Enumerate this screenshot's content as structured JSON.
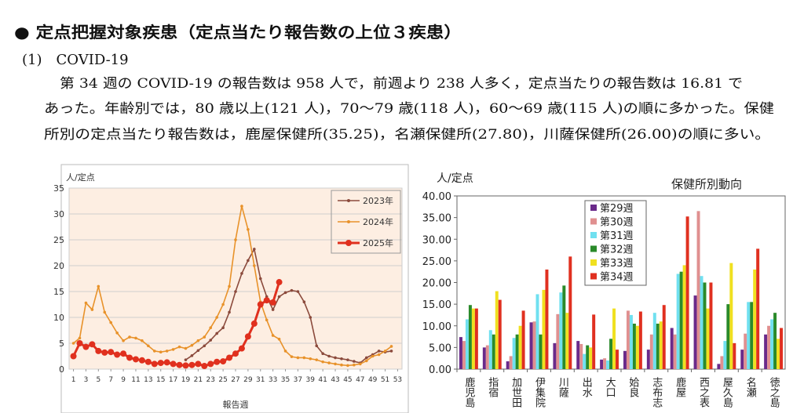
{
  "header": {
    "title": "● 定点把握対象疾患（定点当たり報告数の上位３疾患）",
    "subtitle": "(1)　COVID-19"
  },
  "paragraph": [
    "第 34 週の COVID-19 の報告数は 958 人で，前週より 238 人多く，定点当たりの報告数は 16.81 で",
    "あった。年齢別では，80 歳以上(121 人)，70〜79 歳(118 人)，60〜69 歳(115 人)の順に多かった。保健",
    "所別の定点当たり報告数は，鹿屋保健所(35.25)，名瀬保健所(27.80)，川薩保健所(26.00)の順に多い。"
  ],
  "chart_data": [
    {
      "type": "line",
      "ylabel": "人/定点",
      "xlabel": "報告週",
      "grid": true,
      "legend": "top-right",
      "x": [
        1,
        2,
        3,
        4,
        5,
        6,
        7,
        8,
        9,
        10,
        11,
        12,
        13,
        14,
        15,
        16,
        17,
        18,
        19,
        20,
        21,
        22,
        23,
        24,
        25,
        26,
        27,
        28,
        29,
        30,
        31,
        32,
        33,
        34,
        35,
        36,
        37,
        38,
        39,
        40,
        41,
        42,
        43,
        44,
        45,
        46,
        47,
        48,
        49,
        50,
        51,
        52,
        53
      ],
      "xlim": [
        0.3,
        53.7
      ],
      "xticks": [
        1,
        3,
        5,
        7,
        9,
        11,
        13,
        15,
        17,
        19,
        21,
        23,
        25,
        27,
        29,
        31,
        33,
        35,
        37,
        39,
        41,
        43,
        45,
        47,
        49,
        51,
        53
      ],
      "ylim": [
        0,
        35
      ],
      "yticks": [
        0,
        5,
        10,
        15,
        20,
        25,
        30,
        35
      ],
      "series": [
        {
          "name": "2023年",
          "color": "#8b4a3c",
          "values": [
            null,
            null,
            null,
            null,
            null,
            null,
            null,
            null,
            null,
            null,
            null,
            null,
            null,
            null,
            null,
            null,
            null,
            null,
            1.8,
            2.6,
            3.6,
            4.5,
            5.6,
            6.9,
            8.0,
            11.0,
            15.0,
            18.5,
            21.0,
            23.2,
            17.5,
            14.0,
            11.5,
            14.0,
            14.8,
            15.2,
            15.0,
            13.0,
            10.0,
            4.5,
            3.0,
            2.5,
            2.2,
            2.0,
            1.8,
            1.5,
            1.2,
            2.2,
            2.8,
            3.5,
            3.3,
            3.5,
            null
          ]
        },
        {
          "name": "2024年",
          "color": "#e8922a",
          "values": [
            5.0,
            6.0,
            12.8,
            11.5,
            16.0,
            11.0,
            9.0,
            7.0,
            5.5,
            6.2,
            6.0,
            5.5,
            4.5,
            3.5,
            3.3,
            3.5,
            3.8,
            4.3,
            4.0,
            4.6,
            5.5,
            6.2,
            8.0,
            10.0,
            12.5,
            16.0,
            25.0,
            31.5,
            27.0,
            20.0,
            13.0,
            9.5,
            6.5,
            5.8,
            3.5,
            2.4,
            2.2,
            2.2,
            2.0,
            1.8,
            1.4,
            1.2,
            1.0,
            0.8,
            0.7,
            0.8,
            1.0,
            1.6,
            2.5,
            2.8,
            3.5,
            4.4,
            null
          ]
        },
        {
          "name": "2025年",
          "color": "#e0301e",
          "values": [
            2.5,
            5.0,
            4.3,
            4.8,
            3.5,
            3.2,
            3.3,
            2.8,
            3.0,
            2.2,
            1.9,
            1.7,
            1.4,
            1.0,
            1.2,
            1.3,
            1.0,
            0.8,
            0.7,
            0.8,
            1.0,
            0.6,
            1.0,
            1.4,
            1.5,
            2.2,
            3.0,
            4.0,
            6.3,
            8.8,
            12.5,
            13.3,
            12.9,
            16.81,
            null,
            null,
            null,
            null,
            null,
            null,
            null,
            null,
            null,
            null,
            null,
            null,
            null,
            null,
            null,
            null,
            null,
            null,
            null
          ]
        }
      ]
    },
    {
      "type": "bar",
      "title": "保健所別動向",
      "ylabel": "人/定点",
      "grid": false,
      "legend": "top-left",
      "categories": [
        "鹿児島",
        "指宿",
        "加世田",
        "伊集院",
        "川薩",
        "出水",
        "大口",
        "姶良",
        "志布志",
        "鹿屋",
        "西之表",
        "屋久島",
        "名瀬",
        "徳之島"
      ],
      "ylim": [
        0,
        40
      ],
      "yticks": [
        {
          "value": 0,
          "label": "0.00"
        },
        {
          "value": 5,
          "label": "5.00"
        },
        {
          "value": 10,
          "label": "10.00"
        },
        {
          "value": 15,
          "label": "15.00"
        },
        {
          "value": 20,
          "label": "20.00"
        },
        {
          "value": 25,
          "label": "25.00"
        },
        {
          "value": 30,
          "label": "30.00"
        },
        {
          "value": 35,
          "label": "35.00"
        },
        {
          "value": 40,
          "label": "40.00"
        }
      ],
      "series": [
        {
          "name": "第29週",
          "color": "#6a2a8a",
          "values": [
            7.4,
            5.0,
            1.8,
            10.8,
            6.0,
            6.5,
            2.2,
            4.2,
            4.5,
            9.5,
            17.0,
            1.2,
            4.5,
            8.0
          ]
        },
        {
          "name": "第30週",
          "color": "#e09090",
          "values": [
            6.5,
            5.5,
            3.0,
            11.0,
            12.7,
            5.8,
            2.5,
            13.5,
            8.0,
            8.0,
            36.5,
            3.0,
            8.2,
            10.0
          ]
        },
        {
          "name": "第31週",
          "color": "#70e0f0",
          "values": [
            11.5,
            9.0,
            7.2,
            17.3,
            17.7,
            3.5,
            2.0,
            12.5,
            13.0,
            22.0,
            21.5,
            6.5,
            15.5,
            11.5
          ]
        },
        {
          "name": "第32週",
          "color": "#2a8a2a",
          "values": [
            14.8,
            8.0,
            8.0,
            8.0,
            19.3,
            5.5,
            7.0,
            10.5,
            10.5,
            22.5,
            20.0,
            15.0,
            15.5,
            13.0
          ]
        },
        {
          "name": "第33週",
          "color": "#f0e020",
          "values": [
            14.0,
            18.0,
            10.0,
            18.3,
            13.0,
            5.0,
            14.0,
            10.0,
            11.0,
            24.0,
            14.0,
            24.5,
            23.0,
            7.0
          ]
        },
        {
          "name": "第34週",
          "color": "#e03020",
          "values": [
            14.0,
            16.0,
            13.5,
            23.0,
            26.0,
            12.6,
            4.5,
            13.3,
            14.8,
            35.25,
            20.0,
            6.0,
            27.8,
            9.5
          ]
        }
      ]
    }
  ]
}
